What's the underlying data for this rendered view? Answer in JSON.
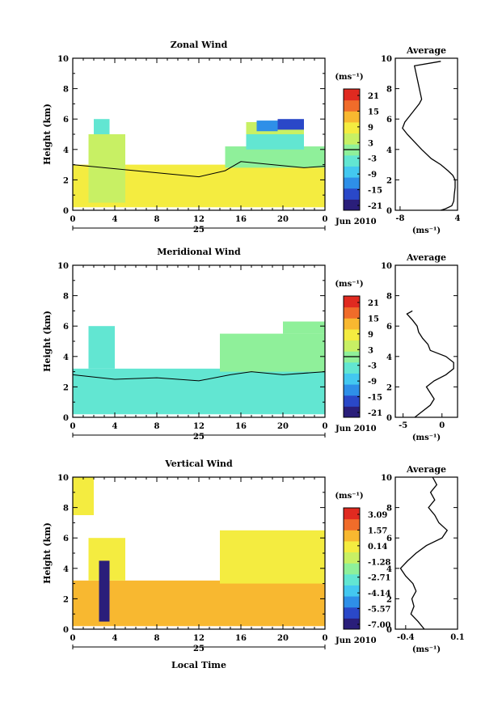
{
  "panels": [
    {
      "title": "Zonal Wind",
      "ylabel": "Height (km)",
      "ylim": [
        0,
        10
      ],
      "yticks": [
        "0",
        "2",
        "4",
        "6",
        "8",
        "10"
      ],
      "xticks": [
        "0",
        "4",
        "8",
        "12",
        "16",
        "20",
        "0"
      ],
      "date_day": "25",
      "date_month": "Jun 2010",
      "colorbar_unit": "(ms⁻¹)",
      "colorbar_ticks": [
        "21",
        "15",
        "9",
        "3",
        "-3",
        "-9",
        "-15",
        "-21"
      ],
      "profile_title": "Average",
      "profile_xticks": [
        "-8",
        "4"
      ],
      "profile_xlabel": "(ms⁻¹)"
    },
    {
      "title": "Meridional Wind",
      "ylabel": "Height (km)",
      "ylim": [
        0,
        10
      ],
      "yticks": [
        "0",
        "2",
        "4",
        "6",
        "8",
        "10"
      ],
      "xticks": [
        "0",
        "4",
        "8",
        "12",
        "16",
        "20",
        "0"
      ],
      "date_day": "25",
      "date_month": "Jun 2010",
      "colorbar_unit": "(ms⁻¹)",
      "colorbar_ticks": [
        "21",
        "15",
        "9",
        "3",
        "-3",
        "-9",
        "-15",
        "-21"
      ],
      "profile_title": "Average",
      "profile_xticks": [
        "-5",
        "0"
      ],
      "profile_xlabel": "(ms⁻¹)"
    },
    {
      "title": "Vertical Wind",
      "ylabel": "Height (km)",
      "ylim": [
        0,
        10
      ],
      "yticks": [
        "0",
        "2",
        "4",
        "6",
        "8",
        "10"
      ],
      "xticks": [
        "0",
        "4",
        "8",
        "12",
        "16",
        "20",
        "0"
      ],
      "date_day": "25",
      "date_month": "Jun 2010",
      "xlabel": "Local Time",
      "colorbar_unit": "(ms⁻¹)",
      "colorbar_ticks": [
        "3.09",
        "1.57",
        "0.14",
        "-1.28",
        "-2.71",
        "-4.14",
        "-5.57",
        "-7.00"
      ],
      "profile_title": "Average",
      "profile_xticks": [
        "-0.4",
        "0.1"
      ],
      "profile_xlabel": "(ms⁻¹)"
    }
  ],
  "colors": {
    "colormap": [
      "#2a1e7a",
      "#2a48c8",
      "#2e8fe8",
      "#43c8f0",
      "#62e6d2",
      "#8ff09a",
      "#c8f064",
      "#f4ec40",
      "#f8b830",
      "#f06c2a",
      "#e02a20"
    ],
    "contour": "#000000",
    "axis": "#000000"
  },
  "chart_data": [
    {
      "type": "heatmap",
      "title": "Zonal Wind",
      "ylabel": "Height (km)",
      "xlim": [
        0,
        24
      ],
      "ylim": [
        0,
        10
      ],
      "clim": [
        -21,
        21
      ],
      "regions": [
        {
          "t": [
            0,
            24
          ],
          "h": [
            0.2,
            3.0
          ],
          "value": 6
        },
        {
          "t": [
            1.5,
            5
          ],
          "h": [
            0.5,
            5.0
          ],
          "value": 4
        },
        {
          "t": [
            2,
            3.5
          ],
          "h": [
            5.0,
            6.0
          ],
          "value": -3
        },
        {
          "t": [
            14.5,
            24
          ],
          "h": [
            2.8,
            4.2
          ],
          "value": -1
        },
        {
          "t": [
            16.5,
            22
          ],
          "h": [
            4.0,
            5.0
          ],
          "value": -4
        },
        {
          "t": [
            16.5,
            22
          ],
          "h": [
            5.0,
            5.8
          ],
          "value": 2
        },
        {
          "t": [
            17.5,
            19.5
          ],
          "h": [
            5.2,
            5.9
          ],
          "value": -12
        },
        {
          "t": [
            19.5,
            22
          ],
          "h": [
            5.3,
            6.0
          ],
          "value": -14
        }
      ],
      "zero_contour": [
        [
          0,
          3.0
        ],
        [
          3,
          2.8
        ],
        [
          6,
          2.6
        ],
        [
          9,
          2.4
        ],
        [
          12,
          2.2
        ],
        [
          14.5,
          2.6
        ],
        [
          16,
          3.2
        ],
        [
          19,
          3.0
        ],
        [
          22,
          2.8
        ],
        [
          24,
          2.9
        ]
      ],
      "profile": {
        "title": "Average",
        "xlim": [
          -9,
          4
        ],
        "xticks": [
          -8,
          4
        ],
        "h": [
          0.0,
          0.1,
          0.3,
          0.6,
          1.0,
          1.5,
          2.0,
          2.3,
          2.6,
          3.0,
          3.4,
          4.0,
          4.5,
          5.0,
          5.4,
          5.8,
          6.2,
          6.6,
          7.0,
          7.3,
          9.5,
          9.8
        ],
        "u": [
          0.5,
          1.5,
          2.8,
          3.2,
          3.3,
          3.5,
          3.5,
          3.0,
          2.0,
          0.5,
          -1.5,
          -3.5,
          -5.0,
          -6.5,
          -7.5,
          -7.0,
          -6.0,
          -5.0,
          -4.0,
          -3.5,
          -5.0,
          0.5
        ]
      }
    },
    {
      "type": "heatmap",
      "title": "Meridional Wind",
      "ylabel": "Height (km)",
      "xlim": [
        0,
        24
      ],
      "ylim": [
        0,
        10
      ],
      "clim": [
        -21,
        21
      ],
      "regions": [
        {
          "t": [
            0,
            24
          ],
          "h": [
            0.2,
            3.2
          ],
          "value": -4
        },
        {
          "t": [
            1.5,
            4
          ],
          "h": [
            3.2,
            6.0
          ],
          "value": -2
        },
        {
          "t": [
            14,
            24
          ],
          "h": [
            3.0,
            5.5
          ],
          "value": 0
        },
        {
          "t": [
            20,
            24
          ],
          "h": [
            5.5,
            6.3
          ],
          "value": -1
        }
      ],
      "zero_contour": [
        [
          0,
          2.8
        ],
        [
          4,
          2.5
        ],
        [
          8,
          2.6
        ],
        [
          12,
          2.4
        ],
        [
          15,
          2.8
        ],
        [
          17,
          3.0
        ],
        [
          20,
          2.8
        ],
        [
          24,
          3.0
        ]
      ],
      "profile": {
        "title": "Average",
        "xlim": [
          -6,
          2
        ],
        "xticks": [
          -5,
          0
        ],
        "h": [
          0.0,
          0.4,
          0.8,
          1.2,
          1.6,
          2.0,
          2.4,
          2.8,
          3.2,
          3.6,
          4.0,
          4.4,
          4.8,
          5.2,
          5.6,
          6.0,
          6.4,
          6.8,
          7.0
        ],
        "u": [
          -3.5,
          -2.5,
          -1.5,
          -1.0,
          -1.5,
          -2.0,
          -1.0,
          0.5,
          1.5,
          1.5,
          0.5,
          -1.5,
          -1.8,
          -2.5,
          -3.0,
          -3.2,
          -3.8,
          -4.5,
          -3.8
        ]
      }
    },
    {
      "type": "heatmap",
      "title": "Vertical Wind",
      "xlabel": "Local Time",
      "ylabel": "Height (km)",
      "xlim": [
        0,
        24
      ],
      "ylim": [
        0,
        10
      ],
      "clim": [
        -7.0,
        3.09
      ],
      "regions": [
        {
          "t": [
            0,
            24
          ],
          "h": [
            0.2,
            3.2
          ],
          "value": 0.4
        },
        {
          "t": [
            1.5,
            5
          ],
          "h": [
            3.2,
            6.0
          ],
          "value": 0.2
        },
        {
          "t": [
            14,
            24
          ],
          "h": [
            3.0,
            6.5
          ],
          "value": 0.3
        },
        {
          "t": [
            0,
            2
          ],
          "h": [
            7.5,
            10.0
          ],
          "value": 0.3
        },
        {
          "t": [
            2.5,
            3.5
          ],
          "h": [
            0.5,
            4.5
          ],
          "value": -6.5
        }
      ],
      "profile": {
        "title": "Average",
        "xlim": [
          -0.5,
          0.1
        ],
        "xticks": [
          -0.4,
          0.1
        ],
        "h": [
          0.0,
          0.5,
          1.0,
          1.5,
          2.0,
          2.5,
          3.0,
          3.5,
          4.0,
          4.5,
          5.0,
          5.5,
          6.0,
          6.5,
          7.0,
          7.5,
          8.0,
          8.5,
          9.0,
          9.5,
          10.0
        ],
        "u": [
          -0.22,
          -0.28,
          -0.35,
          -0.32,
          -0.34,
          -0.3,
          -0.33,
          -0.4,
          -0.45,
          -0.38,
          -0.3,
          -0.2,
          -0.05,
          0.0,
          -0.08,
          -0.12,
          -0.18,
          -0.12,
          -0.16,
          -0.1,
          -0.14
        ]
      }
    }
  ]
}
